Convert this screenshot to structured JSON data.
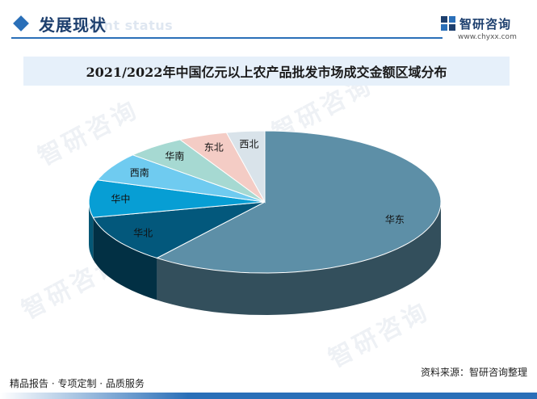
{
  "header": {
    "section_title": "发展现状",
    "section_subtitle": "ment status",
    "brand_name": "智研咨询",
    "brand_url": "www.chyxx.com"
  },
  "chart_data": {
    "type": "pie",
    "title": "2021/2022年中国亿元以上农产品批发市场成交金额区域分布",
    "three_d": true,
    "slices": [
      {
        "label": "华东",
        "value": 60.5,
        "color": "#5d8fa7"
      },
      {
        "label": "华北",
        "value": 11.0,
        "color": "#03587c"
      },
      {
        "label": "华中",
        "value": 8.5,
        "color": "#079ed4"
      },
      {
        "label": "西南",
        "value": 6.5,
        "color": "#6fcbf0"
      },
      {
        "label": "华南",
        "value": 5.5,
        "color": "#a6d9d2"
      },
      {
        "label": "东北",
        "value": 4.5,
        "color": "#f4ccc5"
      },
      {
        "label": "西北",
        "value": 3.5,
        "color": "#d9e3ea"
      }
    ]
  },
  "watermark": {
    "text": "智研咨询"
  },
  "footer": {
    "left": "精品报告 · 专项定制 · 品质服务",
    "right": "资料来源：智研咨询整理"
  }
}
